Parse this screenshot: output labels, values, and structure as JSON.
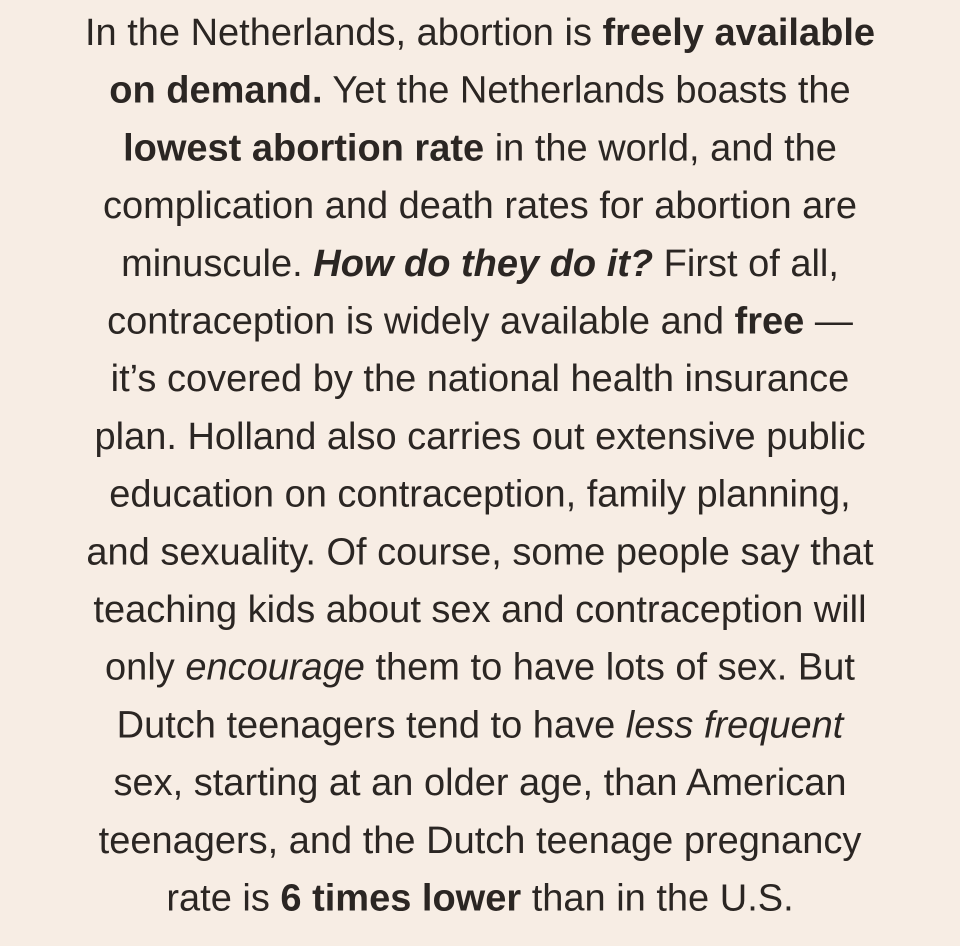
{
  "lines": [
    [
      {
        "text": "In the Netherlands, abortion is "
      },
      {
        "text": "freely available",
        "bold": true
      }
    ],
    [
      {
        "text": "on demand.",
        "bold": true
      },
      {
        "text": " Yet the Netherlands boasts the"
      }
    ],
    [
      {
        "text": "lowest abortion rate",
        "bold": true
      },
      {
        "text": " in the world, and the"
      }
    ],
    [
      {
        "text": "complication and death rates for abortion are"
      }
    ],
    [
      {
        "text": "minuscule. "
      },
      {
        "text": "How do they do it?",
        "bold": true,
        "italic": true
      },
      {
        "text": " First of all,"
      }
    ],
    [
      {
        "text": "contraception is widely available and "
      },
      {
        "text": "free",
        "bold": true
      },
      {
        "text": " —"
      }
    ],
    [
      {
        "text": "it’s covered by the national health insurance"
      }
    ],
    [
      {
        "text": "plan. Holland also carries out extensive public"
      }
    ],
    [
      {
        "text": "education on contraception, family planning,"
      }
    ],
    [
      {
        "text": "and sexuality. Of course, some people say that"
      }
    ],
    [
      {
        "text": "teaching kids about sex and contraception will"
      }
    ],
    [
      {
        "text": "only "
      },
      {
        "text": "encourage",
        "italic": true
      },
      {
        "text": " them to have lots of sex. But"
      }
    ],
    [
      {
        "text": "Dutch teenagers tend to have "
      },
      {
        "text": "less frequent",
        "italic": true
      }
    ],
    [
      {
        "text": "sex, starting at an older age, than American"
      }
    ],
    [
      {
        "text": "teenagers, and the Dutch teenage pregnancy"
      }
    ],
    [
      {
        "text": "rate is "
      },
      {
        "text": "6 times lower",
        "bold": true
      },
      {
        "text": " than in the U.S."
      }
    ]
  ]
}
